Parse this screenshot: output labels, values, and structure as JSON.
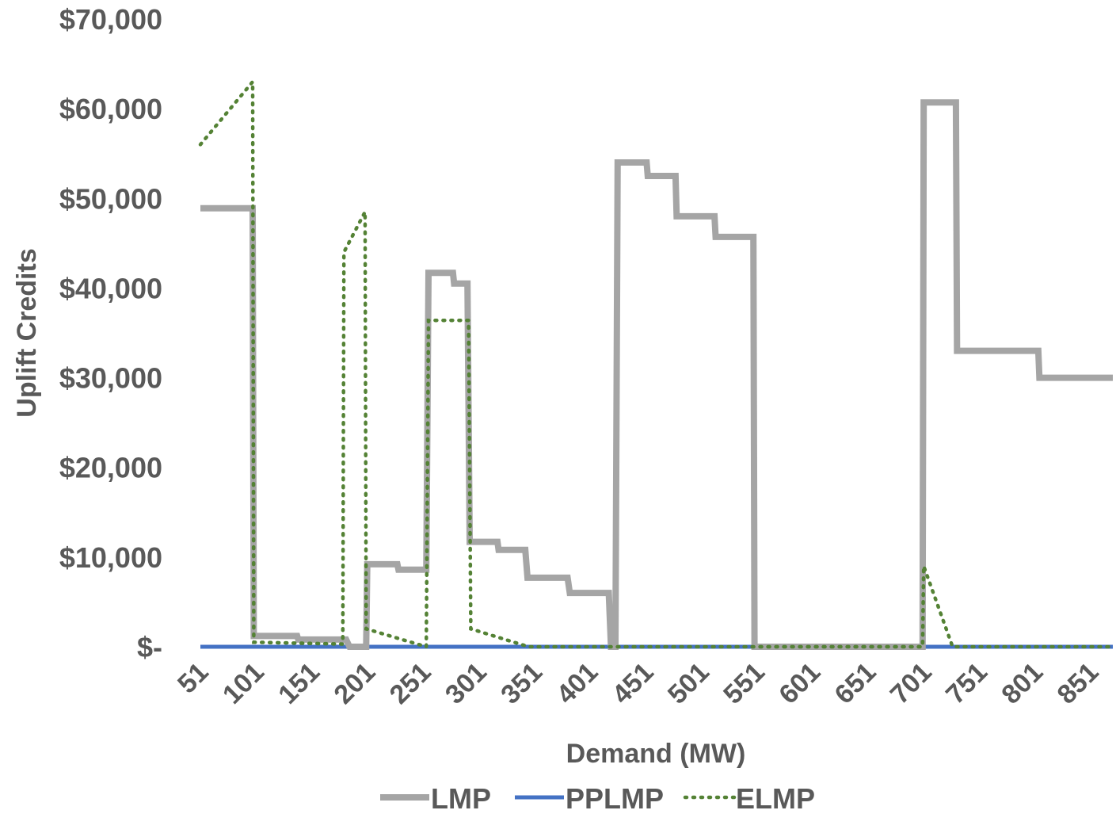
{
  "chart_data": {
    "type": "line",
    "xlabel": "Demand (MW)",
    "ylabel": "Uplift Credits",
    "xlim": [
      51,
      871
    ],
    "ylim": [
      0,
      70000
    ],
    "x_tick_labels": [
      "51",
      "101",
      "151",
      "201",
      "251",
      "301",
      "351",
      "401",
      "451",
      "501",
      "551",
      "601",
      "651",
      "701",
      "751",
      "801",
      "851"
    ],
    "y_tick_values": [
      0,
      10000,
      20000,
      30000,
      40000,
      50000,
      60000,
      70000
    ],
    "y_tick_labels": [
      "$-",
      "$10,000",
      "$20,000",
      "$30,000",
      "$40,000",
      "$50,000",
      "$60,000",
      "$70,000"
    ],
    "grid": false,
    "legend_position": "bottom",
    "series": [
      {
        "name": "LMP",
        "color": "#A5A5A5",
        "style": "solid",
        "points": [
          [
            51,
            48900
          ],
          [
            98,
            48900
          ],
          [
            99,
            1200
          ],
          [
            138,
            1200
          ],
          [
            139,
            800
          ],
          [
            182,
            800
          ],
          [
            185,
            0
          ],
          [
            200,
            0
          ],
          [
            201,
            9200
          ],
          [
            228,
            9200
          ],
          [
            229,
            8600
          ],
          [
            254,
            8600
          ],
          [
            256,
            41700
          ],
          [
            278,
            41700
          ],
          [
            279,
            40500
          ],
          [
            291,
            40500
          ],
          [
            293,
            11700
          ],
          [
            318,
            11700
          ],
          [
            319,
            10800
          ],
          [
            343,
            10800
          ],
          [
            345,
            7700
          ],
          [
            381,
            7700
          ],
          [
            383,
            6000
          ],
          [
            418,
            6000
          ],
          [
            420,
            0
          ],
          [
            424,
            0
          ],
          [
            426,
            54000
          ],
          [
            452,
            54000
          ],
          [
            453,
            52500
          ],
          [
            478,
            52500
          ],
          [
            479,
            48000
          ],
          [
            513,
            48000
          ],
          [
            514,
            45700
          ],
          [
            548,
            45700
          ],
          [
            549,
            0
          ],
          [
            700,
            0
          ],
          [
            701,
            60700
          ],
          [
            730,
            60700
          ],
          [
            731,
            33000
          ],
          [
            804,
            33000
          ],
          [
            805,
            30000
          ],
          [
            871,
            30000
          ]
        ]
      },
      {
        "name": "PPLMP",
        "color": "#4472C4",
        "style": "solid",
        "points": [
          [
            51,
            0
          ],
          [
            871,
            0
          ]
        ]
      },
      {
        "name": "ELMP",
        "color": "#548235",
        "style": "dotted",
        "points": [
          [
            51,
            56000
          ],
          [
            98,
            63000
          ],
          [
            99,
            500
          ],
          [
            179,
            300
          ],
          [
            180,
            44000
          ],
          [
            199,
            48500
          ],
          [
            200,
            2000
          ],
          [
            254,
            0
          ],
          [
            256,
            36400
          ],
          [
            292,
            36400
          ],
          [
            294,
            2000
          ],
          [
            346,
            0
          ],
          [
            700,
            0
          ],
          [
            701,
            9000
          ],
          [
            727,
            0
          ],
          [
            871,
            0
          ]
        ]
      }
    ]
  }
}
